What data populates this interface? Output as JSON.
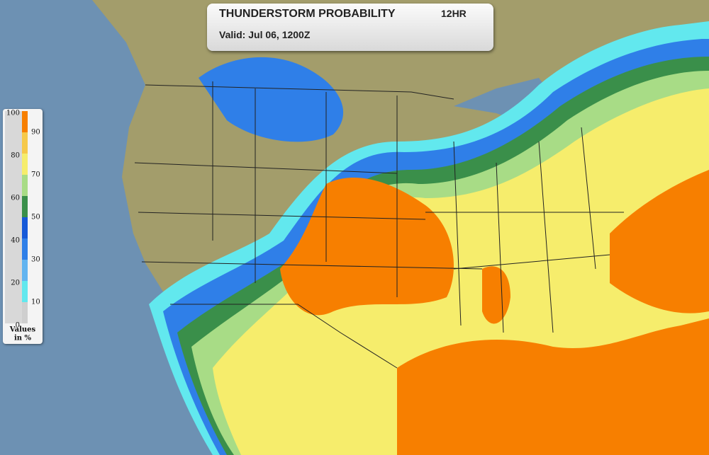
{
  "header": {
    "title": "THUNDERSTORM PROBABILITY",
    "period": "12HR",
    "valid": "Valid: Jul 06, 1200Z"
  },
  "legend": {
    "left_labels": [
      "100",
      "80",
      "60",
      "40",
      "20",
      "0"
    ],
    "right_labels": [
      "90",
      "70",
      "50",
      "30",
      "10"
    ],
    "caption": [
      "Values",
      "in %"
    ]
  }
}
